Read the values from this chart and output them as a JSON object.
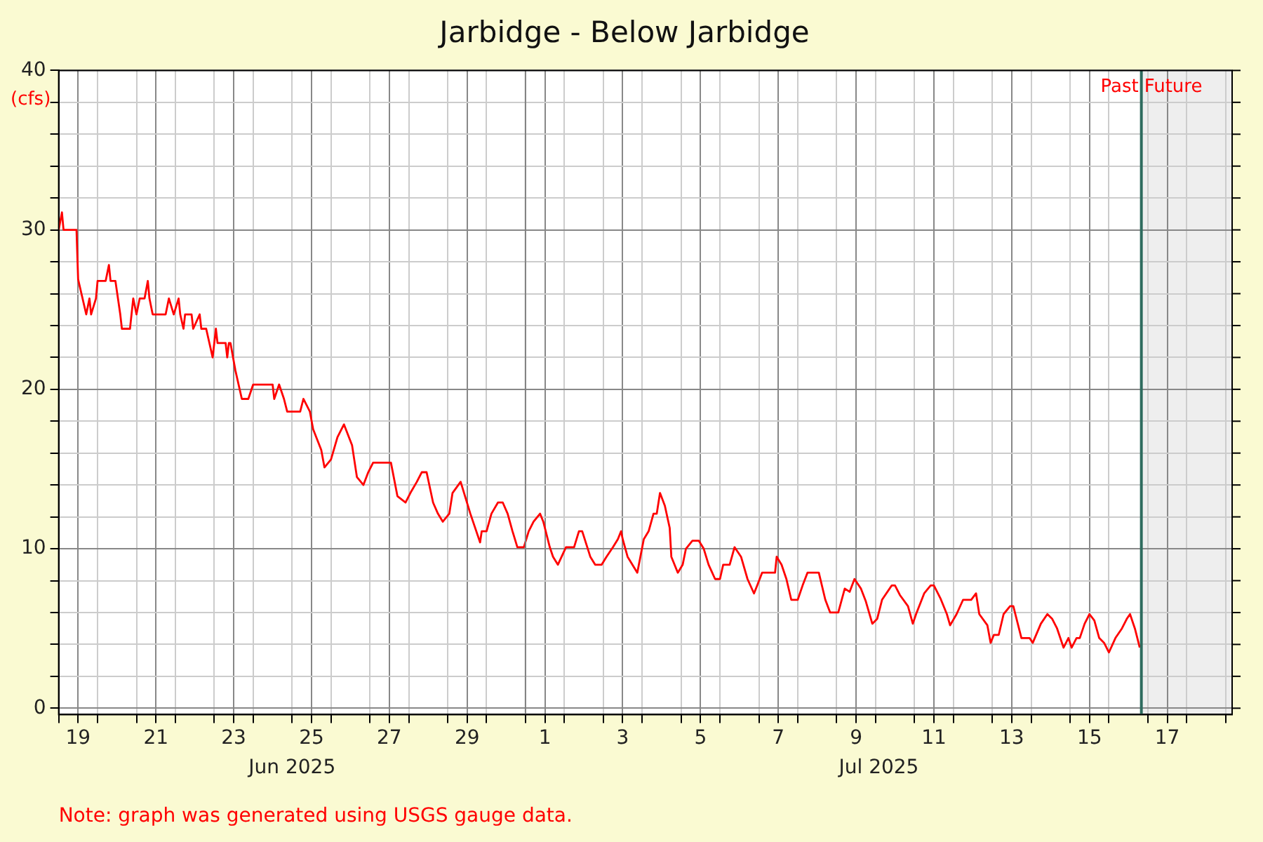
{
  "chart_data": {
    "type": "line",
    "title": "Jarbidge - Below Jarbidge",
    "ylabel": "(cfs)",
    "x": [
      "2025-06-19T00:00",
      "2025-06-19T02:00",
      "2025-06-19T03:00",
      "2025-06-19T11:00",
      "2025-06-19T12:00",
      "2025-06-19T17:00",
      "2025-06-19T19:00",
      "2025-06-19T20:00",
      "2025-06-19T23:00",
      "2025-06-20T00:00",
      "2025-06-20T05:00",
      "2025-06-20T07:00",
      "2025-06-20T08:00",
      "2025-06-20T11:00",
      "2025-06-20T14:00",
      "2025-06-20T15:00",
      "2025-06-20T20:00",
      "2025-06-20T22:00",
      "2025-06-21T00:00",
      "2025-06-21T02:00",
      "2025-06-21T05:00",
      "2025-06-21T07:00",
      "2025-06-21T08:00",
      "2025-06-21T10:00",
      "2025-06-21T18:00",
      "2025-06-21T20:00",
      "2025-06-21T23:00",
      "2025-06-22T02:00",
      "2025-06-22T03:00",
      "2025-06-22T05:00",
      "2025-06-22T06:00",
      "2025-06-22T10:00",
      "2025-06-22T11:00",
      "2025-06-22T15:00",
      "2025-06-22T16:00",
      "2025-06-22T19:00",
      "2025-06-22T21:00",
      "2025-06-22T23:00",
      "2025-06-23T01:00",
      "2025-06-23T02:00",
      "2025-06-23T07:00",
      "2025-06-23T08:00",
      "2025-06-23T09:00",
      "2025-06-23T10:00",
      "2025-06-23T13:00",
      "2025-06-23T17:00",
      "2025-06-23T21:00",
      "2025-06-24T00:00",
      "2025-06-24T12:00",
      "2025-06-24T13:00",
      "2025-06-24T16:00",
      "2025-06-24T19:00",
      "2025-06-24T21:00",
      "2025-06-25T05:00",
      "2025-06-25T07:00",
      "2025-06-25T11:00",
      "2025-06-25T13:00",
      "2025-06-25T18:00",
      "2025-06-25T20:00",
      "2025-06-26T00:00",
      "2025-06-26T04:00",
      "2025-06-26T08:00",
      "2025-06-26T13:00",
      "2025-06-26T16:00",
      "2025-06-26T20:00",
      "2025-06-26T23:00",
      "2025-06-27T02:00",
      "2025-06-27T13:00",
      "2025-06-27T17:00",
      "2025-06-27T22:00",
      "2025-06-28T01:00",
      "2025-06-28T05:00",
      "2025-06-28T08:00",
      "2025-06-28T11:00",
      "2025-06-28T15:00",
      "2025-06-28T18:00",
      "2025-06-28T21:00",
      "2025-06-29T01:00",
      "2025-06-29T03:00",
      "2025-06-29T08:00",
      "2025-06-29T14:00",
      "2025-06-29T20:00",
      "2025-06-29T21:00",
      "2025-06-30T00:00",
      "2025-06-30T03:00",
      "2025-06-30T07:00",
      "2025-06-30T10:00",
      "2025-06-30T13:00",
      "2025-06-30T16:00",
      "2025-06-30T19:00",
      "2025-06-30T23:00",
      "2025-07-01T02:00",
      "2025-07-01T05:00",
      "2025-07-01T09:00",
      "2025-07-01T11:00",
      "2025-07-01T15:00",
      "2025-07-01T17:00",
      "2025-07-01T20:00",
      "2025-07-02T01:00",
      "2025-07-02T06:00",
      "2025-07-02T09:00",
      "2025-07-02T11:00",
      "2025-07-02T16:00",
      "2025-07-02T19:00",
      "2025-07-02T23:00",
      "2025-07-03T02:00",
      "2025-07-03T06:00",
      "2025-07-03T09:00",
      "2025-07-03T11:00",
      "2025-07-03T12:00",
      "2025-07-03T15:00",
      "2025-07-03T21:00",
      "2025-07-04T01:00",
      "2025-07-04T04:00",
      "2025-07-04T07:00",
      "2025-07-04T09:00",
      "2025-07-04T11:00",
      "2025-07-04T14:00",
      "2025-07-04T17:00",
      "2025-07-04T18:00",
      "2025-07-04T22:00",
      "2025-07-05T01:00",
      "2025-07-05T03:00",
      "2025-07-05T07:00",
      "2025-07-05T11:00",
      "2025-07-05T14:00",
      "2025-07-05T17:00",
      "2025-07-05T21:00",
      "2025-07-06T00:00",
      "2025-07-06T02:00",
      "2025-07-06T06:00",
      "2025-07-06T09:00",
      "2025-07-06T13:00",
      "2025-07-06T17:00",
      "2025-07-06T21:00",
      "2025-07-06T23:00",
      "2025-07-07T02:00",
      "2025-07-07T10:00",
      "2025-07-07T11:00",
      "2025-07-07T14:00",
      "2025-07-07T17:00",
      "2025-07-07T20:00",
      "2025-07-08T00:00",
      "2025-07-08T03:00",
      "2025-07-08T06:00",
      "2025-07-08T13:00",
      "2025-07-08T17:00",
      "2025-07-08T20:00",
      "2025-07-09T01:00",
      "2025-07-09T05:00",
      "2025-07-09T08:00",
      "2025-07-09T11:00",
      "2025-07-09T15:00",
      "2025-07-09T18:00",
      "2025-07-09T22:00",
      "2025-07-10T01:00",
      "2025-07-10T04:00",
      "2025-07-10T10:00",
      "2025-07-10T12:00",
      "2025-07-10T15:00",
      "2025-07-10T20:00",
      "2025-07-10T23:00",
      "2025-07-11T01:00",
      "2025-07-11T06:00",
      "2025-07-11T10:00",
      "2025-07-11T12:00",
      "2025-07-11T16:00",
      "2025-07-11T20:00",
      "2025-07-11T22:00",
      "2025-07-12T02:00",
      "2025-07-12T06:00",
      "2025-07-12T11:00",
      "2025-07-12T14:00",
      "2025-07-12T16:00",
      "2025-07-12T21:00",
      "2025-07-12T23:00",
      "2025-07-13T01:00",
      "2025-07-13T04:00",
      "2025-07-13T07:00",
      "2025-07-13T11:00",
      "2025-07-13T13:00",
      "2025-07-13T15:00",
      "2025-07-13T18:00",
      "2025-07-13T23:00",
      "2025-07-14T01:00",
      "2025-07-14T06:00",
      "2025-07-14T10:00",
      "2025-07-14T13:00",
      "2025-07-14T16:00",
      "2025-07-14T20:00",
      "2025-07-14T23:00",
      "2025-07-15T01:00",
      "2025-07-15T04:00",
      "2025-07-15T06:00",
      "2025-07-15T09:00",
      "2025-07-15T12:00",
      "2025-07-15T15:00",
      "2025-07-15T18:00",
      "2025-07-15T21:00",
      "2025-07-16T00:00",
      "2025-07-16T04:00",
      "2025-07-16T08:00",
      "2025-07-16T11:00",
      "2025-07-16T13:00",
      "2025-07-16T16:00",
      "2025-07-16T19:00"
    ],
    "series": [
      {
        "color": "#ff0000",
        "values": [
          30.0,
          31.1,
          30.0,
          30.0,
          26.9,
          24.7,
          25.7,
          24.7,
          25.7,
          26.8,
          26.8,
          27.8,
          26.8,
          26.8,
          24.7,
          23.8,
          23.8,
          25.7,
          24.7,
          25.7,
          25.7,
          26.8,
          25.7,
          24.7,
          24.7,
          25.7,
          24.7,
          25.7,
          24.7,
          23.8,
          24.7,
          24.7,
          23.8,
          24.7,
          23.8,
          23.8,
          22.9,
          22.0,
          23.8,
          22.9,
          22.9,
          22.0,
          22.9,
          22.9,
          21.2,
          19.4,
          19.4,
          20.3,
          20.3,
          19.4,
          20.3,
          19.4,
          18.6,
          18.6,
          19.4,
          18.6,
          17.5,
          16.2,
          15.1,
          15.6,
          17.0,
          17.8,
          16.5,
          14.5,
          14.0,
          14.8,
          15.4,
          15.4,
          13.3,
          12.9,
          13.5,
          14.2,
          14.8,
          14.8,
          12.9,
          12.2,
          11.7,
          12.2,
          13.5,
          14.2,
          12.2,
          10.4,
          11.1,
          11.1,
          12.2,
          12.9,
          12.9,
          12.2,
          11.1,
          10.1,
          10.1,
          11.1,
          11.7,
          12.2,
          11.7,
          10.1,
          9.5,
          9.0,
          10.1,
          10.1,
          11.1,
          11.1,
          9.5,
          9.0,
          9.0,
          9.5,
          10.1,
          10.6,
          11.1,
          10.6,
          9.5,
          8.5,
          10.6,
          11.1,
          12.2,
          12.2,
          13.5,
          12.7,
          11.3,
          9.5,
          8.5,
          9.0,
          10.0,
          10.5,
          10.5,
          10.0,
          9.0,
          8.1,
          8.1,
          9.0,
          9.0,
          10.1,
          9.5,
          8.1,
          7.2,
          7.7,
          8.5,
          8.5,
          9.5,
          9.0,
          8.1,
          6.8,
          6.8,
          7.7,
          8.5,
          8.5,
          6.8,
          6.0,
          6.0,
          7.5,
          7.3,
          8.1,
          7.5,
          6.7,
          5.3,
          5.6,
          6.8,
          7.7,
          7.7,
          7.1,
          6.4,
          5.3,
          5.9,
          7.2,
          7.7,
          7.7,
          6.9,
          5.9,
          5.2,
          5.9,
          6.8,
          6.8,
          7.2,
          5.9,
          5.2,
          4.1,
          4.6,
          4.6,
          5.9,
          6.4,
          6.4,
          5.6,
          4.4,
          4.4,
          4.1,
          5.3,
          5.9,
          5.6,
          5.0,
          3.8,
          4.4,
          3.8,
          4.4,
          4.4,
          5.3,
          5.9,
          5.5,
          4.4,
          4.1,
          3.5,
          4.4,
          5.0,
          5.6,
          5.9,
          5.0,
          3.8
        ]
      }
    ],
    "xlim": [
      "2025-06-19T00:00",
      "2025-07-19T04:00"
    ],
    "xticks": [
      {
        "value": "2025-06-19",
        "label": null
      },
      {
        "value": "2025-06-19T12:00",
        "label": "19"
      },
      {
        "value": "2025-06-20",
        "label": null
      },
      {
        "value": "2025-06-21",
        "label": null
      },
      {
        "value": "2025-06-21T12:00",
        "label": "21"
      },
      {
        "value": "2025-06-22",
        "label": null
      },
      {
        "value": "2025-06-23",
        "label": null
      },
      {
        "value": "2025-06-23T12:00",
        "label": "23"
      },
      {
        "value": "2025-06-24",
        "label": null
      },
      {
        "value": "2025-06-25",
        "label": null
      },
      {
        "value": "2025-06-25T12:00",
        "label": "25"
      },
      {
        "value": "2025-06-26",
        "label": null
      },
      {
        "value": "2025-06-27",
        "label": null
      },
      {
        "value": "2025-06-27T12:00",
        "label": "27"
      },
      {
        "value": "2025-06-28",
        "label": null
      },
      {
        "value": "2025-06-29",
        "label": null
      },
      {
        "value": "2025-06-29T12:00",
        "label": "29"
      },
      {
        "value": "2025-06-30",
        "label": null
      },
      {
        "value": "2025-07-01",
        "label": null
      },
      {
        "value": "2025-07-01T12:00",
        "label": "1"
      },
      {
        "value": "2025-07-02",
        "label": null
      },
      {
        "value": "2025-07-03",
        "label": null
      },
      {
        "value": "2025-07-03T12:00",
        "label": "3"
      },
      {
        "value": "2025-07-04",
        "label": null
      },
      {
        "value": "2025-07-05",
        "label": null
      },
      {
        "value": "2025-07-05T12:00",
        "label": "5"
      },
      {
        "value": "2025-07-06",
        "label": null
      },
      {
        "value": "2025-07-07",
        "label": null
      },
      {
        "value": "2025-07-07T12:00",
        "label": "7"
      },
      {
        "value": "2025-07-08",
        "label": null
      },
      {
        "value": "2025-07-09",
        "label": null
      },
      {
        "value": "2025-07-09T12:00",
        "label": "9"
      },
      {
        "value": "2025-07-10",
        "label": null
      },
      {
        "value": "2025-07-11",
        "label": null
      },
      {
        "value": "2025-07-11T12:00",
        "label": "11"
      },
      {
        "value": "2025-07-12",
        "label": null
      },
      {
        "value": "2025-07-13",
        "label": null
      },
      {
        "value": "2025-07-13T12:00",
        "label": "13"
      },
      {
        "value": "2025-07-14",
        "label": null
      },
      {
        "value": "2025-07-15",
        "label": null
      },
      {
        "value": "2025-07-15T12:00",
        "label": "15"
      },
      {
        "value": "2025-07-16",
        "label": null
      },
      {
        "value": "2025-07-17",
        "label": null
      },
      {
        "value": "2025-07-17T12:00",
        "label": "17"
      },
      {
        "value": "2025-07-18",
        "label": null
      },
      {
        "value": "2025-07-19",
        "label": null
      }
    ],
    "ylim": [
      -0.4,
      40
    ],
    "yticks": [
      0,
      {
        "value": 2,
        "label": null
      },
      {
        "value": 4,
        "label": null
      },
      {
        "value": 6,
        "label": null
      },
      {
        "value": 8,
        "label": null
      },
      10,
      {
        "value": 12,
        "label": null
      },
      {
        "value": 14,
        "label": null
      },
      {
        "value": 16,
        "label": null
      },
      {
        "value": 18,
        "label": null
      },
      20,
      {
        "value": 22,
        "label": null
      },
      {
        "value": 24,
        "label": null
      },
      {
        "value": 26,
        "label": null
      },
      {
        "value": 28,
        "label": null
      },
      30,
      {
        "value": 32,
        "label": null
      },
      {
        "value": 34,
        "label": null
      },
      {
        "value": 36,
        "label": null
      },
      {
        "value": 38,
        "label": null
      },
      40
    ],
    "grid": true,
    "legend": false,
    "marker": "none",
    "line_style": "solid",
    "ref_lines": [
      {
        "axis": "x",
        "value": "2025-07-01",
        "color": "#808080"
      },
      {
        "axis": "x",
        "value": "2025-07-16T20:00",
        "label": "Past",
        "color": "#2e6b5e"
      }
    ],
    "bands": [
      {
        "axis": "x",
        "from": "2025-07-16T20:00",
        "to": "2025-07-19T04:00",
        "label": "Future",
        "color": "#eeeeee"
      }
    ],
    "annotations": [
      "Jun 2025",
      "Jul 2025",
      "Note: graph was generated using USGS gauge data."
    ]
  }
}
